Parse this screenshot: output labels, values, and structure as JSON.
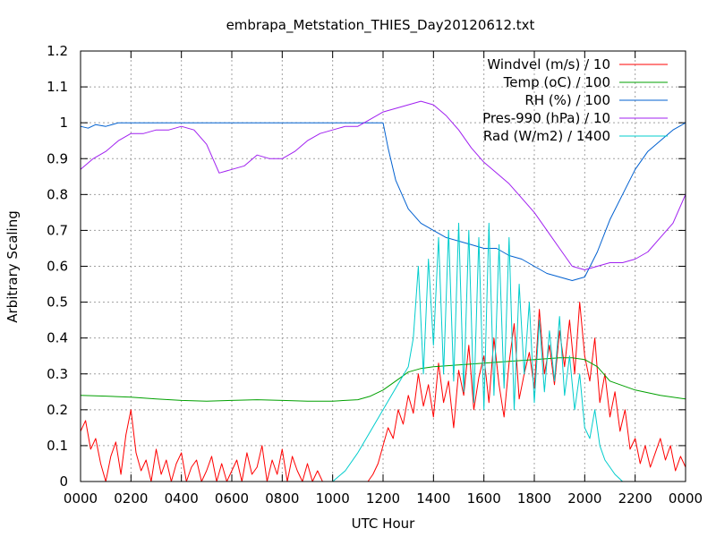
{
  "chart_data": {
    "type": "line",
    "title": "embrapa_Metstation_THIES_Day20120612.txt",
    "xlabel": "UTC Hour",
    "ylabel": "Arbitrary Scaling",
    "xlim": [
      0,
      24
    ],
    "ylim": [
      0,
      1.2
    ],
    "grid": true,
    "legend_position": "top-right",
    "x_ticks": [
      {
        "value": 0,
        "label": "0000"
      },
      {
        "value": 2,
        "label": "0200"
      },
      {
        "value": 4,
        "label": "0400"
      },
      {
        "value": 6,
        "label": "0600"
      },
      {
        "value": 8,
        "label": "0800"
      },
      {
        "value": 10,
        "label": "1000"
      },
      {
        "value": 12,
        "label": "1200"
      },
      {
        "value": 14,
        "label": "1400"
      },
      {
        "value": 16,
        "label": "1600"
      },
      {
        "value": 18,
        "label": "1800"
      },
      {
        "value": 20,
        "label": "2000"
      },
      {
        "value": 22,
        "label": "2200"
      },
      {
        "value": 24,
        "label": "0000"
      }
    ],
    "y_ticks": [
      {
        "value": 0,
        "label": "0"
      },
      {
        "value": 0.1,
        "label": "0.1"
      },
      {
        "value": 0.2,
        "label": "0.2"
      },
      {
        "value": 0.3,
        "label": "0.3"
      },
      {
        "value": 0.4,
        "label": "0.4"
      },
      {
        "value": 0.5,
        "label": "0.5"
      },
      {
        "value": 0.6,
        "label": "0.6"
      },
      {
        "value": 0.7,
        "label": "0.7"
      },
      {
        "value": 0.8,
        "label": "0.8"
      },
      {
        "value": 0.9,
        "label": "0.9"
      },
      {
        "value": 1.0,
        "label": "1"
      },
      {
        "value": 1.1,
        "label": "1.1"
      },
      {
        "value": 1.2,
        "label": "1.2"
      }
    ],
    "series": [
      {
        "name": "Windvel (m/s) / 10",
        "color": "#ff0000",
        "x": [
          0,
          0.2,
          0.4,
          0.6,
          0.8,
          1.0,
          1.2,
          1.4,
          1.6,
          1.8,
          2.0,
          2.2,
          2.4,
          2.6,
          2.8,
          3.0,
          3.2,
          3.4,
          3.6,
          3.8,
          4.0,
          4.2,
          4.4,
          4.6,
          4.8,
          5.0,
          5.2,
          5.4,
          5.6,
          5.8,
          6.0,
          6.2,
          6.4,
          6.6,
          6.8,
          7.0,
          7.2,
          7.4,
          7.6,
          7.8,
          8.0,
          8.2,
          8.4,
          8.6,
          8.8,
          9.0,
          9.2,
          9.4,
          9.6,
          9.8,
          10.0,
          10.2,
          10.4,
          10.6,
          10.8,
          11.0,
          11.2,
          11.4,
          11.6,
          11.8,
          12.0,
          12.2,
          12.4,
          12.6,
          12.8,
          13.0,
          13.2,
          13.4,
          13.6,
          13.8,
          14.0,
          14.2,
          14.4,
          14.6,
          14.8,
          15.0,
          15.2,
          15.4,
          15.6,
          15.8,
          16.0,
          16.2,
          16.4,
          16.6,
          16.8,
          17.0,
          17.2,
          17.4,
          17.6,
          17.8,
          18.0,
          18.2,
          18.4,
          18.6,
          18.8,
          19.0,
          19.2,
          19.4,
          19.6,
          19.8,
          20.0,
          20.2,
          20.4,
          20.6,
          20.8,
          21.0,
          21.2,
          21.4,
          21.6,
          21.8,
          22.0,
          22.2,
          22.4,
          22.6,
          22.8,
          23.0,
          23.2,
          23.4,
          23.6,
          23.8,
          24.0
        ],
        "values": [
          0.14,
          0.17,
          0.09,
          0.12,
          0.05,
          0.0,
          0.07,
          0.11,
          0.02,
          0.13,
          0.2,
          0.08,
          0.03,
          0.06,
          0.0,
          0.09,
          0.02,
          0.06,
          0.0,
          0.05,
          0.08,
          0.0,
          0.04,
          0.06,
          0.0,
          0.03,
          0.07,
          0.0,
          0.05,
          0.0,
          0.03,
          0.06,
          0.0,
          0.08,
          0.02,
          0.04,
          0.1,
          0.0,
          0.06,
          0.02,
          0.09,
          0.0,
          0.07,
          0.03,
          0.0,
          0.05,
          0.0,
          0.03,
          0.0,
          0.0,
          0.0,
          0.0,
          0.0,
          0.0,
          0.0,
          0.0,
          0.0,
          0.0,
          0.02,
          0.05,
          0.1,
          0.15,
          0.12,
          0.2,
          0.16,
          0.24,
          0.19,
          0.3,
          0.21,
          0.27,
          0.18,
          0.33,
          0.22,
          0.28,
          0.15,
          0.31,
          0.24,
          0.38,
          0.2,
          0.29,
          0.35,
          0.22,
          0.4,
          0.27,
          0.18,
          0.33,
          0.44,
          0.23,
          0.3,
          0.36,
          0.26,
          0.48,
          0.3,
          0.38,
          0.27,
          0.42,
          0.32,
          0.45,
          0.3,
          0.5,
          0.35,
          0.28,
          0.4,
          0.22,
          0.3,
          0.18,
          0.25,
          0.14,
          0.2,
          0.09,
          0.12,
          0.05,
          0.1,
          0.04,
          0.08,
          0.12,
          0.06,
          0.1,
          0.03,
          0.07,
          0.04
        ]
      },
      {
        "name": "Temp (oC) / 100",
        "color": "#00a000",
        "x": [
          0,
          1,
          2,
          3,
          4,
          5,
          6,
          7,
          8,
          9,
          10,
          11,
          11.5,
          12,
          12.5,
          13,
          13.5,
          14,
          15,
          16,
          17,
          18,
          19,
          19.5,
          20,
          20.5,
          21,
          22,
          23,
          24
        ],
        "values": [
          0.24,
          0.238,
          0.235,
          0.23,
          0.226,
          0.224,
          0.226,
          0.228,
          0.226,
          0.224,
          0.224,
          0.228,
          0.238,
          0.255,
          0.28,
          0.305,
          0.315,
          0.32,
          0.325,
          0.33,
          0.335,
          0.34,
          0.345,
          0.345,
          0.34,
          0.32,
          0.28,
          0.255,
          0.24,
          0.23
        ]
      },
      {
        "name": "RH (%) / 100",
        "color": "#0060d0",
        "x": [
          0,
          0.3,
          0.6,
          1,
          1.5,
          2,
          3,
          4,
          5,
          6,
          7,
          8,
          9,
          10,
          11,
          11.5,
          12,
          12.2,
          12.5,
          13,
          13.5,
          14,
          14.5,
          15,
          15.5,
          16,
          16.5,
          17,
          17.5,
          18,
          18.5,
          19,
          19.5,
          20,
          20.5,
          21,
          21.5,
          22,
          22.5,
          23,
          23.5,
          24
        ],
        "values": [
          0.99,
          0.985,
          0.995,
          0.99,
          1.0,
          1.0,
          1.0,
          1.0,
          1.0,
          1.0,
          1.0,
          1.0,
          1.0,
          1.0,
          1.0,
          1.0,
          1.0,
          0.93,
          0.84,
          0.76,
          0.72,
          0.7,
          0.68,
          0.67,
          0.66,
          0.65,
          0.65,
          0.63,
          0.62,
          0.6,
          0.58,
          0.57,
          0.56,
          0.57,
          0.64,
          0.73,
          0.8,
          0.87,
          0.92,
          0.95,
          0.98,
          1.0
        ]
      },
      {
        "name": "Pres-990 (hPa) / 10",
        "color": "#a020f0",
        "x": [
          0,
          0.5,
          1,
          1.5,
          2,
          2.5,
          3,
          3.5,
          4,
          4.5,
          5,
          5.5,
          6,
          6.5,
          7,
          7.5,
          8,
          8.5,
          9,
          9.5,
          10,
          10.5,
          11,
          11.5,
          12,
          12.5,
          13,
          13.5,
          14,
          14.5,
          15,
          15.5,
          16,
          16.5,
          17,
          17.5,
          18,
          18.5,
          19,
          19.5,
          20,
          20.5,
          21,
          21.5,
          22,
          22.5,
          23,
          23.5,
          24
        ],
        "values": [
          0.87,
          0.9,
          0.92,
          0.95,
          0.97,
          0.97,
          0.98,
          0.98,
          0.99,
          0.98,
          0.94,
          0.86,
          0.87,
          0.88,
          0.91,
          0.9,
          0.9,
          0.92,
          0.95,
          0.97,
          0.98,
          0.99,
          0.99,
          1.01,
          1.03,
          1.04,
          1.05,
          1.06,
          1.05,
          1.02,
          0.98,
          0.93,
          0.89,
          0.86,
          0.83,
          0.79,
          0.75,
          0.7,
          0.65,
          0.6,
          0.59,
          0.6,
          0.61,
          0.61,
          0.62,
          0.64,
          0.68,
          0.72,
          0.8
        ]
      },
      {
        "name": "Rad (W/m2) / 1400",
        "color": "#00cccc",
        "x": [
          0,
          10,
          10.5,
          11,
          11.5,
          12,
          12.5,
          13,
          13.2,
          13.4,
          13.6,
          13.8,
          14,
          14.2,
          14.4,
          14.6,
          14.8,
          15,
          15.2,
          15.4,
          15.6,
          15.8,
          16,
          16.2,
          16.4,
          16.6,
          16.8,
          17,
          17.2,
          17.4,
          17.6,
          17.8,
          18,
          18.2,
          18.4,
          18.6,
          18.8,
          19,
          19.2,
          19.4,
          19.6,
          19.8,
          20,
          20.2,
          20.4,
          20.6,
          20.8,
          21,
          21.2,
          21.5,
          24
        ],
        "values": [
          0,
          0,
          0.03,
          0.08,
          0.14,
          0.2,
          0.26,
          0.32,
          0.4,
          0.6,
          0.3,
          0.62,
          0.38,
          0.68,
          0.3,
          0.7,
          0.28,
          0.72,
          0.25,
          0.7,
          0.22,
          0.68,
          0.2,
          0.72,
          0.24,
          0.66,
          0.26,
          0.68,
          0.2,
          0.55,
          0.3,
          0.5,
          0.22,
          0.45,
          0.25,
          0.42,
          0.28,
          0.46,
          0.24,
          0.35,
          0.2,
          0.3,
          0.15,
          0.12,
          0.2,
          0.1,
          0.06,
          0.04,
          0.02,
          0.0,
          0
        ]
      }
    ]
  }
}
